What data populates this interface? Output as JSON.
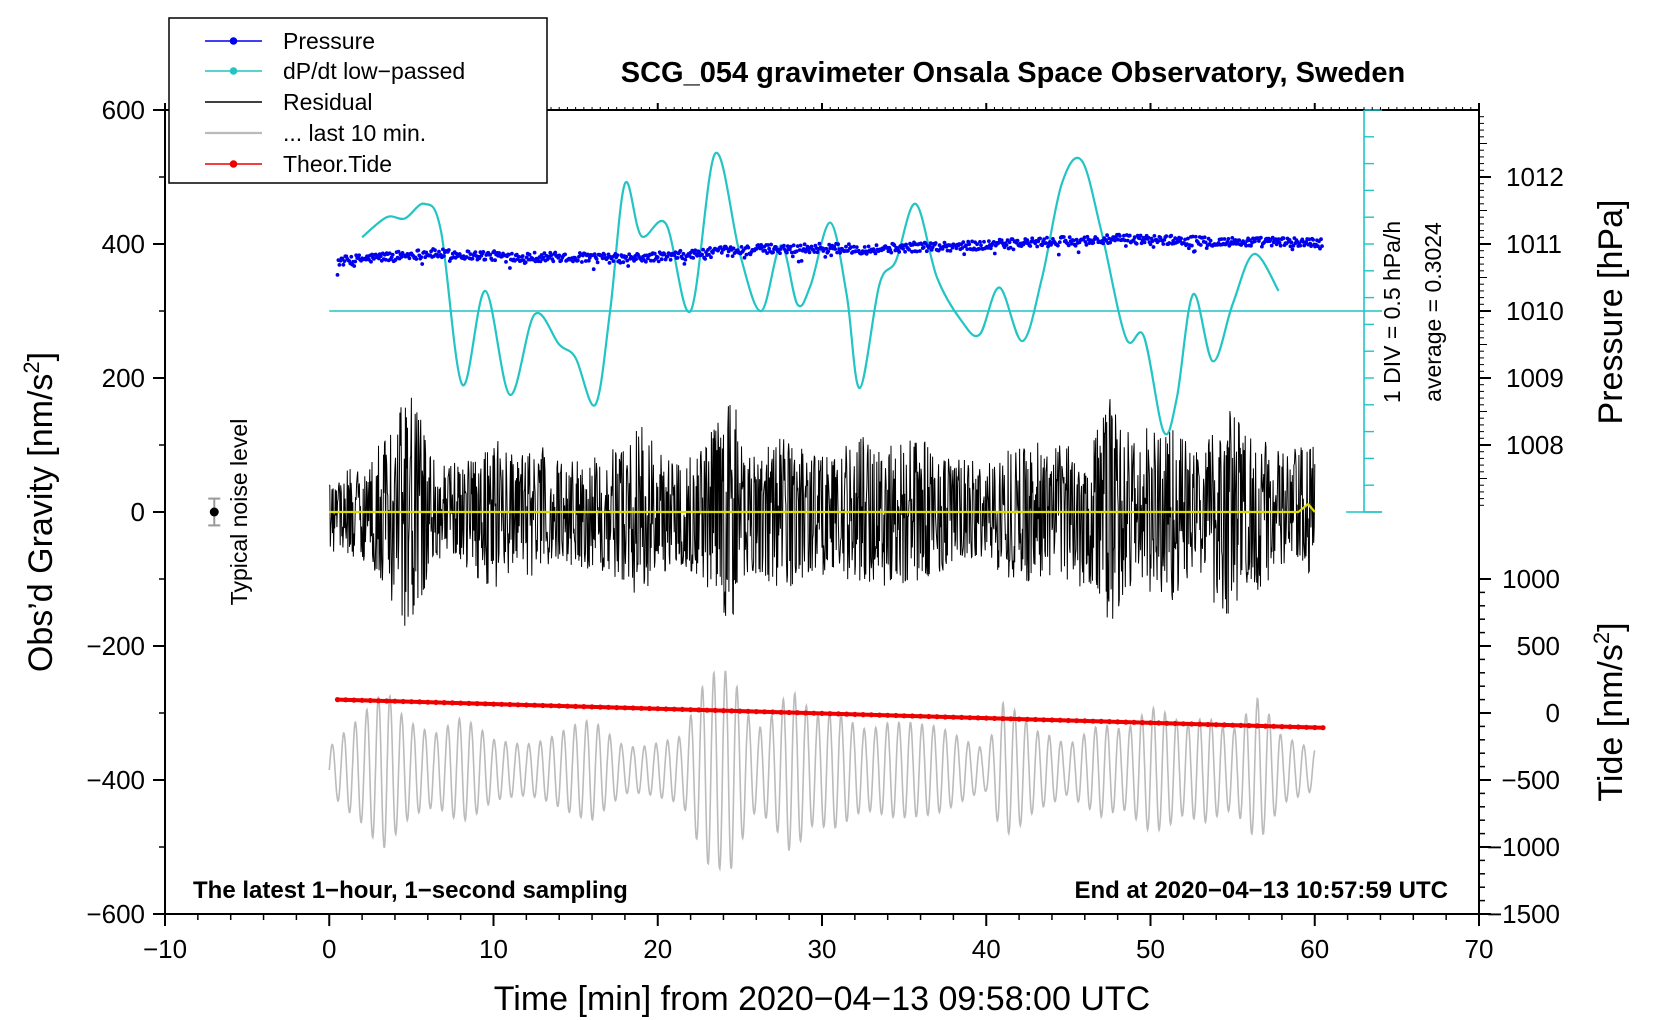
{
  "chart_data": {
    "type": "line",
    "title": "SCG_054 gravimeter Onsala Space Observatory, Sweden",
    "xlabel": "Time [min] from 2020−04−13 09:58:00 UTC",
    "ylabel_left_main": "Obs’d Gravity [nm/s",
    "ylabel_left_sup": "2",
    "ylabel_left_close": "]",
    "ylabel_right_pressure": "Pressure [hPa]",
    "ylabel_right_tide_main": "Tide [nm/s",
    "ylabel_right_tide_sup": "2",
    "ylabel_right_tide_close": "]",
    "xlim": [
      -10,
      70
    ],
    "ylim": [
      -600,
      600
    ],
    "x_ticks": [
      -10,
      0,
      10,
      20,
      30,
      40,
      50,
      60,
      70
    ],
    "x_tick_labels": [
      "−10",
      "0",
      "10",
      "20",
      "30",
      "40",
      "50",
      "60",
      "70"
    ],
    "y_ticks": [
      600,
      400,
      200,
      0,
      -200,
      -400,
      -600
    ],
    "y_tick_labels": [
      "600",
      "400",
      "200",
      "0",
      "−200",
      "−400",
      "−600"
    ],
    "pressure_axis": {
      "ticks": [
        1012,
        1011,
        1010,
        1009,
        1008
      ],
      "tick_labels": [
        "1012",
        "1011",
        "1010",
        "1009",
        "1008"
      ],
      "gravity_at_1010": 300,
      "gravity_per_hpa": 100
    },
    "tide_axis": {
      "ticks": [
        1000,
        500,
        0,
        -500,
        -1000,
        -1500
      ],
      "tick_labels": [
        "1000",
        "500",
        "0",
        "−500",
        "−1000",
        "−1500"
      ],
      "gravity_at_0": -300,
      "gravity_per_unit": 0.2
    },
    "legend": {
      "position": "top-left",
      "entries": [
        {
          "label": "Pressure",
          "color": "#0000ee",
          "marker": "dot"
        },
        {
          "label": "dP/dt low−passed",
          "color": "#22c4c4",
          "marker": "dot"
        },
        {
          "label": "Residual",
          "color": "#000000",
          "marker": "none"
        },
        {
          "label": "... last 10 min.",
          "color": "#bbbbbb",
          "marker": "none"
        },
        {
          "label": "Theor.Tide",
          "color": "#ee0000",
          "marker": "dot"
        }
      ]
    },
    "annotations": {
      "noise_label": "Typical noise level",
      "noise_marker": {
        "x": -7,
        "y": 0,
        "err": 20
      },
      "div_label": "1 DIV = 0.5 hPa/h",
      "average_label": "average = 0.3024",
      "bottom_left": "The latest 1−hour, 1−second sampling",
      "bottom_right": "End at 2020−04−13 10:57:59 UTC"
    },
    "dpdt_scale": {
      "x": 63,
      "y_min": 0,
      "y_max": 600,
      "zero_line_y": 300
    },
    "series": [
      {
        "name": "Pressure",
        "color": "#0000ee",
        "x": [
          0.5,
          3,
          6,
          9,
          12,
          15,
          18,
          21,
          24,
          27,
          30,
          33,
          36,
          39,
          42,
          45,
          48,
          51,
          54,
          57,
          60.5
        ],
        "y": [
          374,
          380,
          386,
          383,
          381,
          380,
          378,
          382,
          389,
          393,
          394,
          392,
          396,
          397,
          401,
          404,
          407,
          406,
          403,
          403,
          402
        ]
      },
      {
        "name": "dP/dt low−passed",
        "color": "#22c4c4",
        "x": [
          2,
          3.5,
          4.6,
          5.8,
          6.8,
          8.1,
          9.5,
          11,
          12.5,
          14,
          15,
          16.2,
          17.1,
          18,
          19,
          20.5,
          22,
          23.5,
          25,
          26.3,
          27.5,
          28.5,
          29.3,
          30.5,
          31.5,
          32.3,
          33.5,
          34.5,
          35.7,
          37,
          38.5,
          39.6,
          40.8,
          42.2,
          43.4,
          44.6,
          45.8,
          47,
          48.5,
          49.6,
          50.8,
          51.6,
          52.6,
          53.8,
          55,
          56.3,
          57.8
        ],
        "y": [
          410,
          440,
          438,
          460,
          420,
          190,
          330,
          175,
          295,
          250,
          230,
          160,
          300,
          490,
          412,
          430,
          300,
          535,
          385,
          300,
          398,
          310,
          338,
          432,
          325,
          185,
          340,
          375,
          460,
          350,
          285,
          265,
          335,
          255,
          350,
          490,
          525,
          420,
          260,
          262,
          120,
          170,
          325,
          225,
          310,
          385,
          330
        ]
      },
      {
        "name": "Residual",
        "color": "#000000",
        "x": [
          0,
          60
        ],
        "envelope": [
          [
            0,
            60
          ],
          [
            2,
            70
          ],
          [
            3.5,
            120
          ],
          [
            5,
            190
          ],
          [
            6.5,
            70
          ],
          [
            8,
            75
          ],
          [
            10,
            120
          ],
          [
            11.5,
            80
          ],
          [
            12.5,
            105
          ],
          [
            14,
            80
          ],
          [
            16,
            85
          ],
          [
            17,
            90
          ],
          [
            19,
            130
          ],
          [
            21,
            75
          ],
          [
            22.5,
            95
          ],
          [
            24.5,
            170
          ],
          [
            26,
            90
          ],
          [
            27.5,
            125
          ],
          [
            29,
            100
          ],
          [
            31,
            90
          ],
          [
            32.5,
            120
          ],
          [
            34.5,
            110
          ],
          [
            36,
            110
          ],
          [
            38,
            80
          ],
          [
            40,
            75
          ],
          [
            41.5,
            100
          ],
          [
            43,
            105
          ],
          [
            44,
            95
          ],
          [
            46,
            115
          ],
          [
            47.5,
            170
          ],
          [
            49,
            120
          ],
          [
            51,
            140
          ],
          [
            53,
            90
          ],
          [
            54.5,
            170
          ],
          [
            56,
            130
          ],
          [
            57.5,
            95
          ],
          [
            60,
            100
          ]
        ]
      },
      {
        "name": "... last 10 min.",
        "color": "#bbbbbb",
        "x": [
          0,
          60
        ],
        "center": -385,
        "envelope": [
          [
            0,
            40
          ],
          [
            2,
            80
          ],
          [
            3.5,
            140
          ],
          [
            4.5,
            110
          ],
          [
            6.5,
            70
          ],
          [
            8,
            80
          ],
          [
            10,
            50
          ],
          [
            12,
            55
          ],
          [
            14,
            65
          ],
          [
            16,
            75
          ],
          [
            18,
            45
          ],
          [
            20,
            55
          ],
          [
            21.5,
            55
          ],
          [
            23,
            140
          ],
          [
            24.5,
            175
          ],
          [
            26,
            85
          ],
          [
            28,
            140
          ],
          [
            29.5,
            80
          ],
          [
            31,
            95
          ],
          [
            32.5,
            85
          ],
          [
            34,
            95
          ],
          [
            36,
            70
          ],
          [
            38,
            60
          ],
          [
            40,
            45
          ],
          [
            41,
            135
          ],
          [
            43,
            60
          ],
          [
            45,
            40
          ],
          [
            47,
            100
          ],
          [
            48.5,
            75
          ],
          [
            50,
            95
          ],
          [
            52,
            75
          ],
          [
            53.5,
            110
          ],
          [
            55,
            80
          ],
          [
            56.5,
            115
          ],
          [
            58,
            50
          ],
          [
            60,
            40
          ]
        ]
      },
      {
        "name": "Theor.Tide",
        "color": "#ee0000",
        "x": [
          0.5,
          60.5
        ],
        "y": [
          -280,
          -322
        ]
      },
      {
        "name": "Residual (yellow)",
        "color": "#dddd00",
        "x": [
          0,
          59,
          59.6,
          60
        ],
        "y": [
          0,
          0,
          12,
          0
        ]
      }
    ]
  }
}
